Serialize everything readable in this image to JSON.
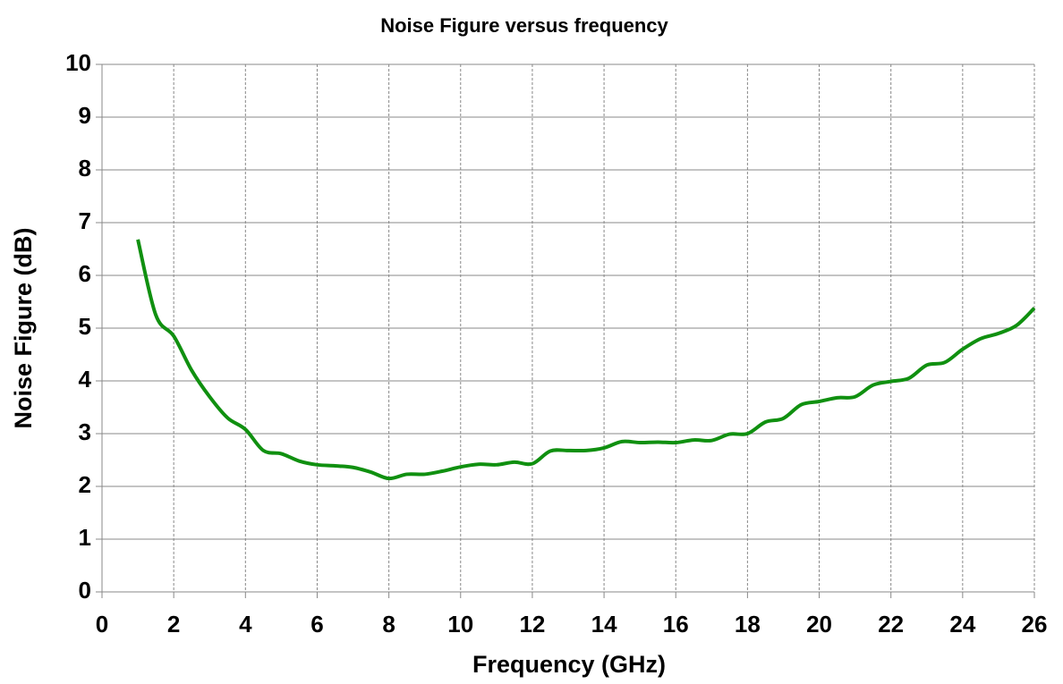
{
  "chart_data": {
    "type": "line",
    "title": "Noise Figure versus frequency",
    "x_label": "Frequency (GHz)",
    "y_label": "Noise Figure (dB)",
    "x": [
      1,
      1.5,
      2,
      2.5,
      3,
      3.5,
      4,
      4.5,
      5,
      5.5,
      6,
      6.5,
      7,
      7.5,
      8,
      8.5,
      9,
      9.5,
      10,
      10.5,
      11,
      11.5,
      12,
      12.5,
      13,
      13.5,
      14,
      14.5,
      15,
      15.5,
      16,
      16.5,
      17,
      17.5,
      18,
      18.5,
      19,
      19.5,
      20,
      20.5,
      21,
      21.5,
      22,
      22.5,
      23,
      23.5,
      24,
      24.5,
      25,
      25.5,
      26
    ],
    "series": [
      {
        "name": "Noise Figure",
        "color": "#109010",
        "values": [
          6.68,
          5.25,
          4.85,
          4.2,
          3.7,
          3.3,
          3.08,
          2.68,
          2.62,
          2.48,
          2.41,
          2.39,
          2.36,
          2.27,
          2.15,
          2.23,
          2.23,
          2.29,
          2.37,
          2.42,
          2.41,
          2.46,
          2.43,
          2.67,
          2.68,
          2.68,
          2.73,
          2.85,
          2.83,
          2.84,
          2.83,
          2.88,
          2.87,
          2.99,
          3.0,
          3.22,
          3.29,
          3.55,
          3.61,
          3.68,
          3.7,
          3.92,
          3.99,
          4.05,
          4.3,
          4.35,
          4.6,
          4.8,
          4.9,
          5.05,
          5.38
        ]
      }
    ],
    "xlim": [
      0,
      26
    ],
    "xticks": [
      0,
      2,
      4,
      6,
      8,
      10,
      12,
      14,
      16,
      18,
      20,
      22,
      24,
      26
    ],
    "ylim": [
      0,
      10
    ],
    "yticks": [
      0,
      1,
      2,
      3,
      4,
      5,
      6,
      7,
      8,
      9,
      10
    ],
    "grid": true
  }
}
